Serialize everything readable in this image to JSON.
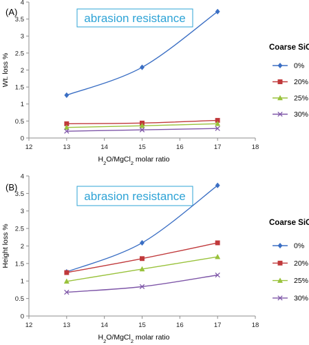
{
  "chart_data": [
    {
      "type": "line",
      "panel_label": "(A)",
      "annotation": "abrasion resistance",
      "ylabel": "Wt. loss %",
      "xlabel": "H2O/MgCl2 molar ratio",
      "xlim": [
        12,
        18
      ],
      "ylim": [
        0,
        4
      ],
      "x_ticks": [
        "12",
        "13",
        "14",
        "15",
        "16",
        "17",
        "18"
      ],
      "y_ticks": [
        "0",
        "0.5",
        "1",
        "1.5",
        "2",
        "2.5",
        "3",
        "3.5",
        "4"
      ],
      "legend_title": "Coarse SiC",
      "legend_position": "right",
      "grid": false,
      "x": [
        13,
        15,
        17
      ],
      "series": [
        {
          "name": "0%",
          "values": [
            1.26,
            2.08,
            3.72
          ],
          "color": "#3b6fc4",
          "marker": "diamond"
        },
        {
          "name": "20%",
          "values": [
            0.42,
            0.44,
            0.52
          ],
          "color": "#c0393b",
          "marker": "square"
        },
        {
          "name": "25%",
          "values": [
            0.31,
            0.36,
            0.42
          ],
          "color": "#99c23b",
          "marker": "triangle"
        },
        {
          "name": "30%",
          "values": [
            0.2,
            0.24,
            0.28
          ],
          "color": "#7e56a8",
          "marker": "x"
        }
      ]
    },
    {
      "type": "line",
      "panel_label": "(B)",
      "annotation": "abrasion resistance",
      "ylabel": "Height loss %",
      "xlabel": "H2O/MgCl2 molar ratio",
      "xlim": [
        12,
        18
      ],
      "ylim": [
        0,
        4
      ],
      "x_ticks": [
        "12",
        "13",
        "14",
        "15",
        "16",
        "17",
        "18"
      ],
      "y_ticks": [
        "0",
        "0.5",
        "1",
        "1.5",
        "2",
        "2.5",
        "3",
        "3.5",
        "4"
      ],
      "legend_title": "Coarse SiC",
      "legend_position": "right",
      "grid": false,
      "x": [
        13,
        15,
        17
      ],
      "series": [
        {
          "name": "0%",
          "values": [
            1.26,
            2.09,
            3.73
          ],
          "color": "#3b6fc4",
          "marker": "diamond"
        },
        {
          "name": "20%",
          "values": [
            1.24,
            1.64,
            2.09
          ],
          "color": "#c0393b",
          "marker": "square"
        },
        {
          "name": "25%",
          "values": [
            0.99,
            1.34,
            1.69
          ],
          "color": "#99c23b",
          "marker": "triangle"
        },
        {
          "name": "30%",
          "values": [
            0.68,
            0.84,
            1.17
          ],
          "color": "#7e56a8",
          "marker": "x"
        }
      ]
    }
  ]
}
